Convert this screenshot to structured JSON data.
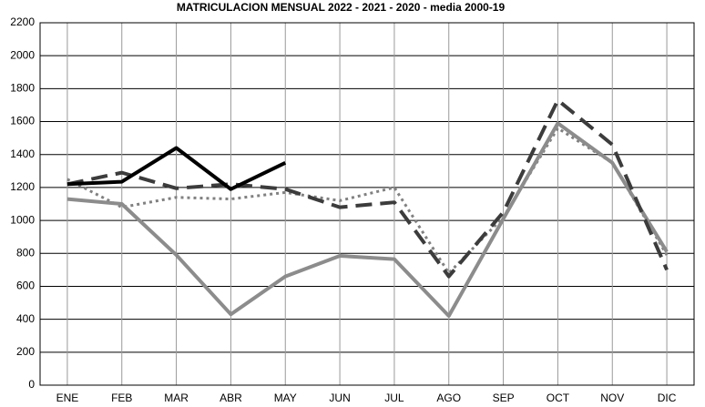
{
  "chart_data": {
    "type": "line",
    "title": "MATRICULACION MENSUAL  2022 - 2021 - 2020 - media 2000-19",
    "categories": [
      "ENE",
      "FEB",
      "MAR",
      "ABR",
      "MAY",
      "JUN",
      "JUL",
      "AGO",
      "SEP",
      "OCT",
      "NOV",
      "DIC"
    ],
    "series": [
      {
        "color": "#000000",
        "style": "solid",
        "values": [
          1220,
          1235,
          1440,
          1190,
          1350,
          null,
          null,
          null,
          null,
          null,
          null,
          null
        ]
      },
      {
        "color": "#3c3c3c",
        "style": "dashed",
        "values": [
          1220,
          1290,
          1195,
          1220,
          1190,
          1080,
          1110,
          660,
          1050,
          1730,
          1460,
          700
        ]
      },
      {
        "color": "#8c8c8c",
        "style": "solid",
        "values": [
          1130,
          1100,
          790,
          430,
          660,
          785,
          765,
          420,
          1010,
          1590,
          1350,
          810
        ]
      },
      {
        "color": "#808080",
        "style": "dotted",
        "values": [
          1250,
          1080,
          1140,
          1130,
          1170,
          1120,
          1200,
          680,
          1020,
          1560,
          1350,
          790
        ]
      }
    ],
    "ylim": [
      0,
      2200
    ],
    "yticks": [
      0,
      200,
      400,
      600,
      800,
      1000,
      1200,
      1400,
      1600,
      1800,
      2000,
      2200
    ],
    "grid": true
  }
}
